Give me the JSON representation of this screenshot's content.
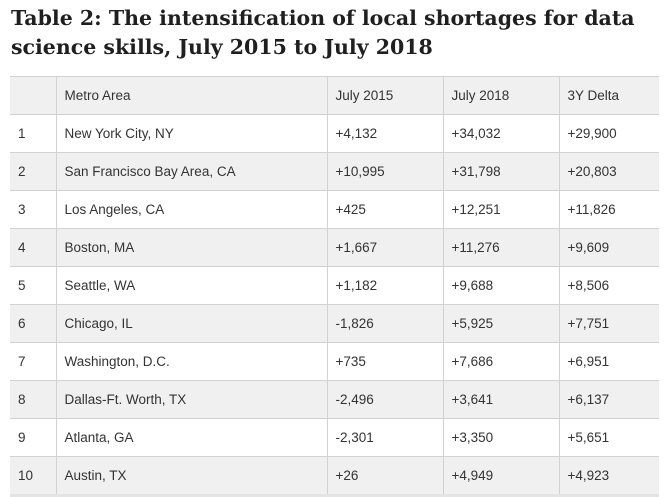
{
  "title": "Table 2: The intensification of local shortages for data science skills, July 2015 to July 2018",
  "table": {
    "headers": [
      "",
      "Metro Area",
      "July 2015",
      "July 2018",
      "3Y Delta"
    ],
    "rows": [
      [
        "1",
        "New York City, NY",
        "+4,132",
        "+34,032",
        "+29,900"
      ],
      [
        "2",
        "San Francisco Bay Area, CA",
        "+10,995",
        "+31,798",
        "+20,803"
      ],
      [
        "3",
        "Los Angeles, CA",
        "+425",
        "+12,251",
        "+11,826"
      ],
      [
        "4",
        "Boston, MA",
        "+1,667",
        "+11,276",
        "+9,609"
      ],
      [
        "5",
        "Seattle, WA",
        "+1,182",
        "+9,688",
        "+8,506"
      ],
      [
        "6",
        "Chicago, IL",
        "-1,826",
        "+5,925",
        "+7,751"
      ],
      [
        "7",
        "Washington, D.C.",
        "+735",
        "+7,686",
        "+6,951"
      ],
      [
        "8",
        "Dallas-Ft. Worth, TX",
        "-2,496",
        "+3,641",
        "+6,137"
      ],
      [
        "9",
        "Atlanta, GA",
        "-2,301",
        "+3,350",
        "+5,651"
      ],
      [
        "10",
        "Austin, TX",
        "+26",
        "+4,949",
        "+4,923"
      ]
    ]
  }
}
